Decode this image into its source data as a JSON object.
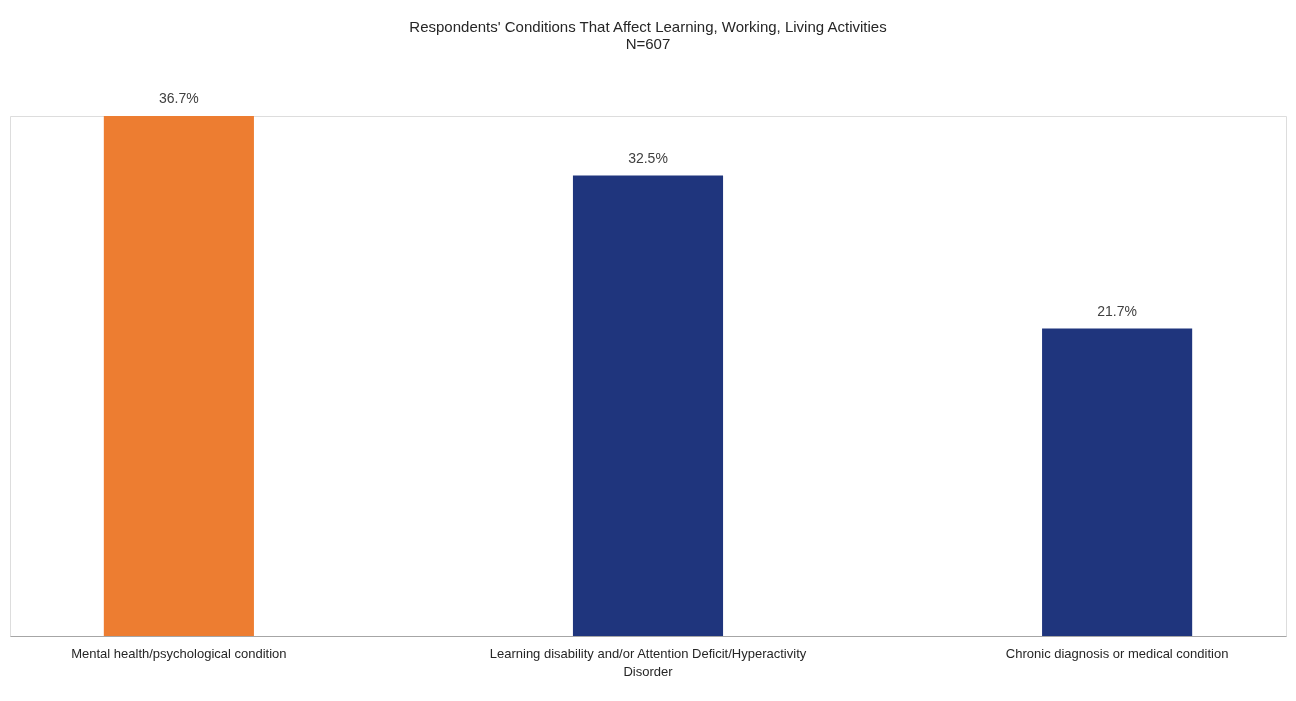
{
  "chart_data": {
    "type": "bar",
    "title": "Respondents' Conditions That Affect Learning, Working, Living Activities",
    "subtitle": "N=607",
    "categories": [
      "Mental health/psychological condition",
      "Learning disability and/or Attention Deficit/Hyperactivity Disorder",
      "Chronic diagnosis or medical condition"
    ],
    "values": [
      36.7,
      32.5,
      21.7
    ],
    "colors": [
      "#ed7d31",
      "#1f357d",
      "#1f357d"
    ],
    "value_labels": [
      "36.7%",
      "32.5%",
      "21.7%"
    ],
    "grid": false,
    "legend": false
  }
}
